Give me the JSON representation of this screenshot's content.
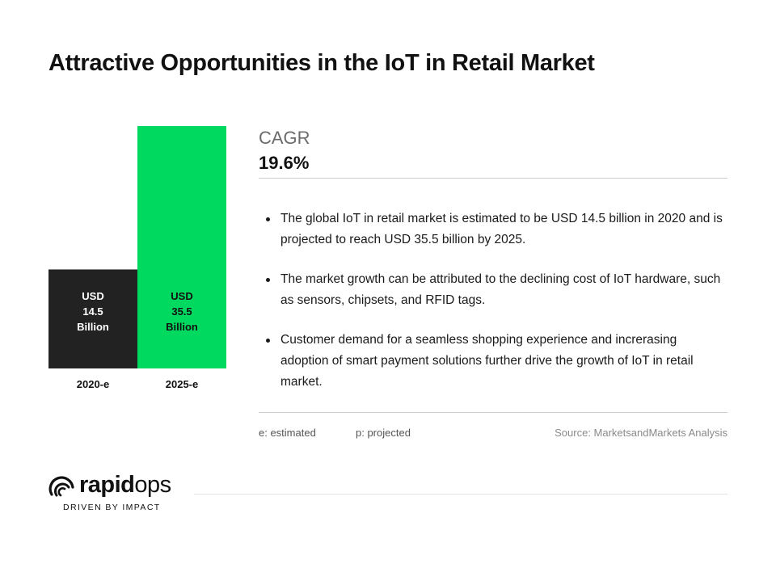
{
  "title": "Attractive Opportunities in the IoT in Retail Market",
  "chart_data": {
    "type": "bar",
    "categories": [
      "2020-e",
      "2025-e"
    ],
    "values": [
      14.5,
      35.5
    ],
    "value_labels": [
      [
        "USD",
        "14.5",
        "Billion"
      ],
      [
        "USD",
        "35.5",
        "Billion"
      ]
    ],
    "bar_colors": [
      "#222222",
      "#00d95f"
    ],
    "label_colors": [
      "#ffffff",
      "#111111"
    ],
    "ylim": [
      0,
      35.5
    ],
    "grid": false,
    "legend": "none"
  },
  "cagr": {
    "label": "CAGR",
    "value": "19.6%"
  },
  "bullets": [
    "The global IoT in retail market is estimated to be USD 14.5 billion in 2020 and is projected to reach USD 35.5 billion by 2025.",
    "The market growth can be attributed to the declining cost of IoT hardware, such as sensors, chipsets, and RFID tags.",
    "Customer demand for a seamless shopping experience and increrasing adoption of smart payment solutions further drive the growth of IoT in retail market."
  ],
  "notes": {
    "estimated": "e: estimated",
    "projected": "p: projected",
    "source": "Source: MarketsandMarkets Analysis"
  },
  "brand": {
    "icon": "rapidops-swirl-icon",
    "name_bold": "rapid",
    "name_light": "ops",
    "tagline": "DRIVEN BY IMPACT"
  }
}
